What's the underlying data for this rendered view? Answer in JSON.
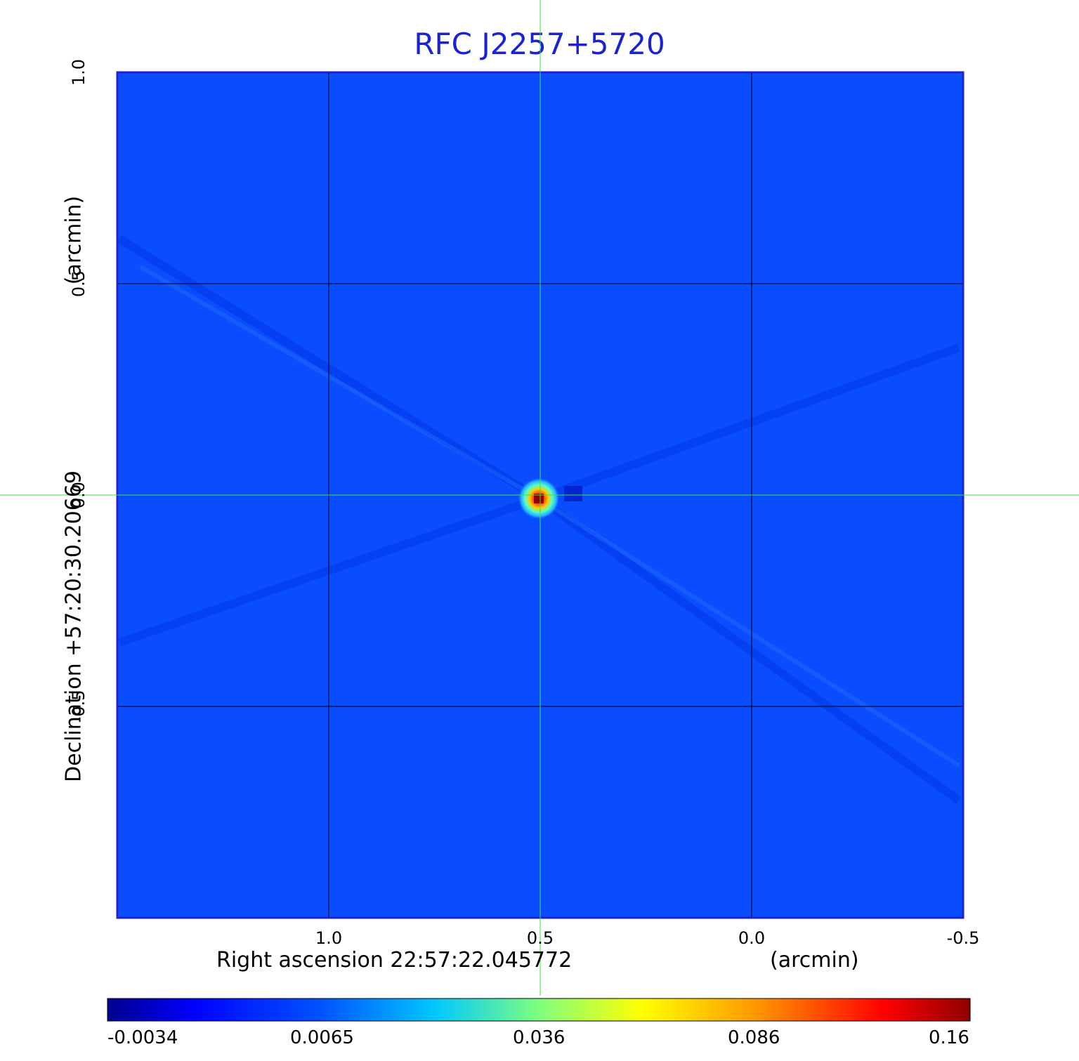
{
  "chart_data": {
    "type": "heatmap",
    "title": "RFC J2257+5720",
    "xlabel": "Right ascension  22:57:22.045772",
    "xunit": "(arcmin)",
    "ylabel": "Declination  +57:20:30.20669",
    "yunit": "(arcmin)",
    "x_ticks": [
      "1.0",
      "0.5",
      "0.0",
      "-0.5"
    ],
    "y_ticks": [
      "1.0",
      "0.5",
      "0.0",
      "-0.5"
    ],
    "xlim": [
      1.5,
      -0.5
    ],
    "ylim": [
      -1.0,
      1.0
    ],
    "grid": true,
    "crosshair": {
      "x": 0.5,
      "y": 0.0,
      "color": "#3ee03e"
    },
    "peak": {
      "x": 0.5,
      "y": 0.0,
      "value": 0.16
    },
    "colorbar": {
      "position": "bottom",
      "colormap": "jet",
      "tick_labels": [
        "-0.0034",
        "0.0065",
        "0.036",
        "0.086",
        "0.16"
      ],
      "range": [
        -0.0034,
        0.16
      ]
    },
    "frame_color": "#1a22d4",
    "background_color": "#0a4dff"
  }
}
